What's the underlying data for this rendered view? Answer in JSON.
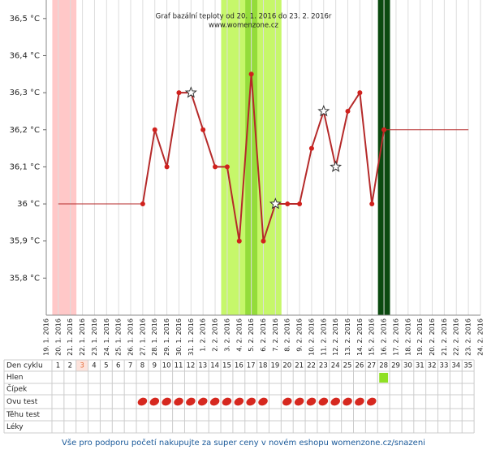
{
  "chart_data": {
    "type": "line",
    "title": "Graf bazální teploty od 20. 1. 2016 do 23. 2. 2016r",
    "subtitle": "www.womenzone.cz",
    "categories": [
      "19. 1. 2016",
      "20. 1. 2016",
      "21. 1. 2016",
      "22. 1. 2016",
      "23. 1. 2016",
      "24. 1. 2016",
      "25. 1. 2016",
      "26. 1. 2016",
      "27. 1. 2016",
      "28. 1. 2016",
      "29. 1. 2016",
      "30. 1. 2016",
      "31. 1. 2016",
      "1. 2. 2016",
      "2. 2. 2016",
      "3. 2. 2016",
      "4. 2. 2016",
      "5. 2. 2016",
      "6. 2. 2016",
      "7. 2. 2016",
      "8. 2. 2016",
      "9. 2. 2016",
      "10. 2. 2016",
      "11. 2. 2016",
      "12. 2. 2016",
      "13. 2. 2016",
      "14. 2. 2016",
      "15. 2. 2016",
      "16. 2. 2016",
      "17. 2. 2016",
      "18. 2. 2016",
      "19. 2. 2016",
      "20. 2. 2016",
      "21. 2. 2016",
      "22. 2. 2016",
      "23. 2. 2016",
      "24. 2. 2016"
    ],
    "values": [
      null,
      null,
      null,
      null,
      null,
      null,
      null,
      null,
      36.0,
      36.2,
      36.1,
      36.3,
      36.3,
      36.2,
      36.1,
      36.1,
      35.9,
      36.35,
      35.9,
      36.0,
      36.0,
      36.0,
      36.15,
      36.25,
      36.1,
      36.25,
      36.3,
      36.0,
      36.2,
      null,
      null,
      null,
      null,
      null,
      null,
      null,
      null
    ],
    "marker_shapes": [
      null,
      null,
      null,
      null,
      null,
      null,
      null,
      null,
      "dot",
      "dot",
      "dot",
      "dot",
      "star",
      "dot",
      "dot",
      "dot",
      "dot",
      "dot",
      "dot",
      "star",
      "dot",
      "dot",
      "dot",
      "star",
      "star",
      "dot",
      "dot",
      "dot",
      "dot",
      null,
      null,
      null,
      null,
      null,
      null,
      null,
      null
    ],
    "color": "#b52a2a",
    "extend_from": 1,
    "extend_to": 35,
    "bands": [
      {
        "from": 1,
        "to": 2,
        "color": "#ffc8c8"
      },
      {
        "from": 15,
        "to": 19,
        "color": "#c6f76a"
      },
      {
        "from": 17,
        "to": 17,
        "color": "#94dc3a"
      },
      {
        "from": 28,
        "to": 28,
        "color": "#0b4a10"
      }
    ],
    "ylim": [
      35.7,
      36.55
    ],
    "yticks": [
      {
        "value": 36.5,
        "label": "36,5 °C"
      },
      {
        "value": 36.4,
        "label": "36,4 °C"
      },
      {
        "value": 36.3,
        "label": "36,3 °C"
      },
      {
        "value": 36.2,
        "label": "36,2 °C"
      },
      {
        "value": 36.1,
        "label": "36,1 °C"
      },
      {
        "value": 36,
        "label": "36 °C"
      },
      {
        "value": 35.9,
        "label": "35,9 °C"
      },
      {
        "value": 35.8,
        "label": "35,8 °C"
      }
    ],
    "grid": true
  },
  "cycle_table": {
    "row_labels": [
      "Den cyklu",
      "Hlen",
      "Čípek",
      "Ovu test",
      "Těhu test",
      "Léky"
    ],
    "days": [
      1,
      2,
      3,
      4,
      5,
      6,
      7,
      8,
      9,
      10,
      11,
      12,
      13,
      14,
      15,
      16,
      17,
      18,
      19,
      20,
      21,
      22,
      23,
      24,
      25,
      26,
      27,
      28,
      29,
      30,
      31,
      32,
      33,
      34,
      35
    ],
    "highlight_days": [
      3
    ],
    "hlen_days": [
      28
    ],
    "ovu_test_days": [
      8,
      9,
      10,
      11,
      12,
      13,
      14,
      15,
      16,
      17,
      18,
      20,
      21,
      22,
      23,
      24,
      25,
      26,
      27
    ]
  },
  "footer": "Vše pro podporu početí nakupujte za super ceny v novém eshopu womenzone.cz/snazeni"
}
